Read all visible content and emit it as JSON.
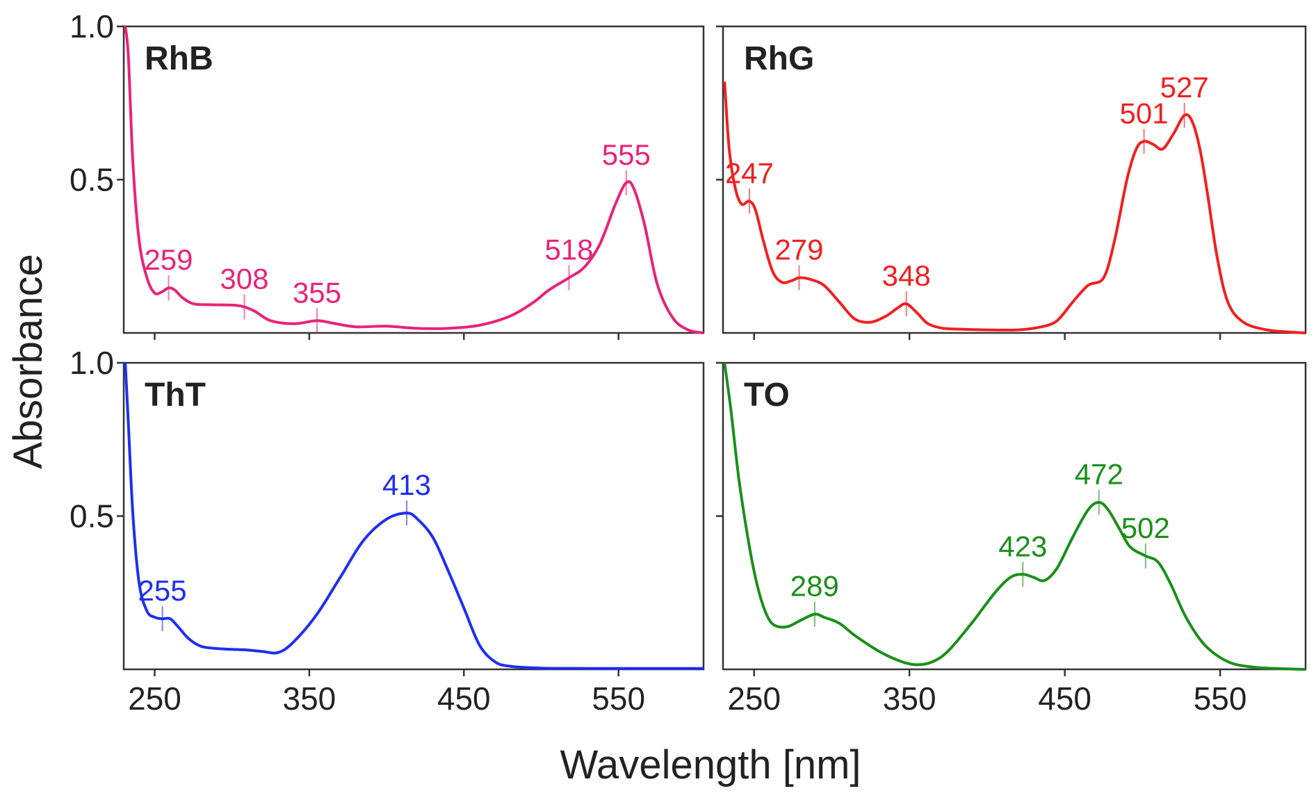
{
  "figure": {
    "xlabel": "Wavelength [nm]",
    "ylabel": "Absorbance"
  },
  "chart_data": [
    {
      "type": "line",
      "panel": "top-left",
      "title": "RhB",
      "color": "#e8237a",
      "xlim": [
        230,
        605
      ],
      "ylim": [
        0,
        1.0
      ],
      "xticks": [
        250,
        350,
        450,
        550
      ],
      "xtick_labels": [
        "",
        "",
        "",
        ""
      ],
      "yticks": [
        0.5,
        1.0
      ],
      "ytick_labels": [
        "0.5",
        "1.0"
      ],
      "series": [
        {
          "x": [
            231,
            233,
            236,
            240,
            245,
            250,
            255,
            259,
            263,
            268,
            275,
            285,
            300,
            308,
            315,
            325,
            340,
            355,
            365,
            380,
            400,
            420,
            440,
            460,
            480,
            495,
            505,
            518,
            528,
            538,
            548,
            555,
            560,
            567,
            575,
            585,
            595,
            605
          ],
          "y": [
            1.0,
            0.9,
            0.55,
            0.3,
            0.18,
            0.13,
            0.135,
            0.147,
            0.14,
            0.115,
            0.095,
            0.092,
            0.091,
            0.085,
            0.07,
            0.04,
            0.03,
            0.04,
            0.032,
            0.02,
            0.022,
            0.015,
            0.015,
            0.025,
            0.055,
            0.1,
            0.14,
            0.18,
            0.215,
            0.29,
            0.42,
            0.49,
            0.47,
            0.35,
            0.16,
            0.05,
            0.01,
            0.0
          ]
        }
      ],
      "peaks": [
        {
          "label": "259",
          "x": 259,
          "y": 0.147
        },
        {
          "label": "308",
          "x": 308,
          "y": 0.085
        },
        {
          "label": "355",
          "x": 355,
          "y": 0.04
        },
        {
          "label": "518",
          "x": 518,
          "y": 0.18
        },
        {
          "label": "555",
          "x": 555,
          "y": 0.49
        }
      ]
    },
    {
      "type": "line",
      "panel": "top-right",
      "title": "RhG",
      "color": "#f02020",
      "xlim": [
        230,
        605
      ],
      "ylim": [
        0,
        1.0
      ],
      "xticks": [
        250,
        350,
        450,
        550
      ],
      "xtick_labels": [
        "",
        "",
        "",
        ""
      ],
      "yticks": [
        0.5,
        1.0
      ],
      "ytick_labels": [
        "",
        ""
      ],
      "series": [
        {
          "x": [
            231,
            234,
            238,
            242,
            247,
            251,
            256,
            262,
            268,
            274,
            279,
            286,
            295,
            305,
            315,
            325,
            335,
            342,
            348,
            355,
            362,
            372,
            385,
            400,
            420,
            435,
            445,
            455,
            465,
            475,
            482,
            490,
            496,
            501,
            507,
            513,
            520,
            527,
            532,
            537,
            542,
            548,
            555,
            565,
            580,
            595,
            605
          ],
          "y": [
            0.82,
            0.6,
            0.47,
            0.42,
            0.43,
            0.4,
            0.3,
            0.2,
            0.165,
            0.17,
            0.18,
            0.175,
            0.155,
            0.1,
            0.045,
            0.035,
            0.055,
            0.08,
            0.095,
            0.065,
            0.03,
            0.015,
            0.012,
            0.01,
            0.01,
            0.02,
            0.04,
            0.1,
            0.155,
            0.18,
            0.3,
            0.5,
            0.6,
            0.625,
            0.615,
            0.6,
            0.65,
            0.71,
            0.69,
            0.6,
            0.45,
            0.25,
            0.1,
            0.035,
            0.01,
            0.003,
            0.0
          ]
        }
      ],
      "peaks": [
        {
          "label": "247",
          "x": 247,
          "y": 0.43
        },
        {
          "label": "279",
          "x": 279,
          "y": 0.18
        },
        {
          "label": "348",
          "x": 348,
          "y": 0.095
        },
        {
          "label": "501",
          "x": 501,
          "y": 0.625
        },
        {
          "label": "527",
          "x": 527,
          "y": 0.71
        }
      ]
    },
    {
      "type": "line",
      "panel": "bottom-left",
      "title": "ThT",
      "color": "#1f2ef2",
      "xlim": [
        230,
        605
      ],
      "ylim": [
        0,
        1.0
      ],
      "xticks": [
        250,
        350,
        450,
        550
      ],
      "xtick_labels": [
        "250",
        "350",
        "450",
        "550"
      ],
      "yticks": [
        0.5,
        1.0
      ],
      "ytick_labels": [
        "0.5",
        "1.0"
      ],
      "series": [
        {
          "x": [
            231,
            233,
            236,
            240,
            245,
            250,
            255,
            260,
            265,
            272,
            280,
            290,
            300,
            310,
            320,
            330,
            340,
            355,
            370,
            385,
            400,
            413,
            420,
            430,
            440,
            450,
            460,
            470,
            480,
            500,
            530,
            560,
            605
          ],
          "y": [
            1.0,
            0.8,
            0.5,
            0.28,
            0.19,
            0.17,
            0.165,
            0.165,
            0.14,
            0.1,
            0.075,
            0.068,
            0.065,
            0.063,
            0.058,
            0.055,
            0.09,
            0.18,
            0.3,
            0.42,
            0.49,
            0.51,
            0.49,
            0.43,
            0.32,
            0.2,
            0.08,
            0.025,
            0.01,
            0.004,
            0.003,
            0.003,
            0.003
          ]
        }
      ],
      "peaks": [
        {
          "label": "255",
          "x": 255,
          "y": 0.165
        },
        {
          "label": "413",
          "x": 413,
          "y": 0.51
        }
      ]
    },
    {
      "type": "line",
      "panel": "bottom-right",
      "title": "TO",
      "color": "#1a8f1a",
      "xlim": [
        230,
        605
      ],
      "ylim": [
        0,
        1.0
      ],
      "xticks": [
        250,
        350,
        450,
        550
      ],
      "xtick_labels": [
        "250",
        "350",
        "450",
        "550"
      ],
      "yticks": [
        0.5,
        1.0
      ],
      "ytick_labels": [
        "",
        ""
      ],
      "series": [
        {
          "x": [
            231,
            235,
            240,
            245,
            250,
            255,
            260,
            265,
            272,
            280,
            289,
            295,
            305,
            315,
            330,
            345,
            355,
            365,
            375,
            390,
            405,
            415,
            423,
            430,
            437,
            445,
            455,
            465,
            472,
            478,
            485,
            492,
            502,
            510,
            518,
            528,
            540,
            555,
            570,
            585,
            605
          ],
          "y": [
            1.0,
            0.85,
            0.63,
            0.46,
            0.32,
            0.22,
            0.16,
            0.14,
            0.14,
            0.16,
            0.18,
            0.17,
            0.15,
            0.11,
            0.06,
            0.025,
            0.015,
            0.025,
            0.06,
            0.15,
            0.25,
            0.3,
            0.31,
            0.3,
            0.29,
            0.33,
            0.43,
            0.52,
            0.545,
            0.52,
            0.46,
            0.4,
            0.37,
            0.35,
            0.28,
            0.17,
            0.08,
            0.025,
            0.008,
            0.003,
            0.0
          ]
        }
      ],
      "peaks": [
        {
          "label": "289",
          "x": 289,
          "y": 0.18
        },
        {
          "label": "423",
          "x": 423,
          "y": 0.31
        },
        {
          "label": "472",
          "x": 472,
          "y": 0.545
        },
        {
          "label": "502",
          "x": 502,
          "y": 0.37
        }
      ]
    }
  ]
}
